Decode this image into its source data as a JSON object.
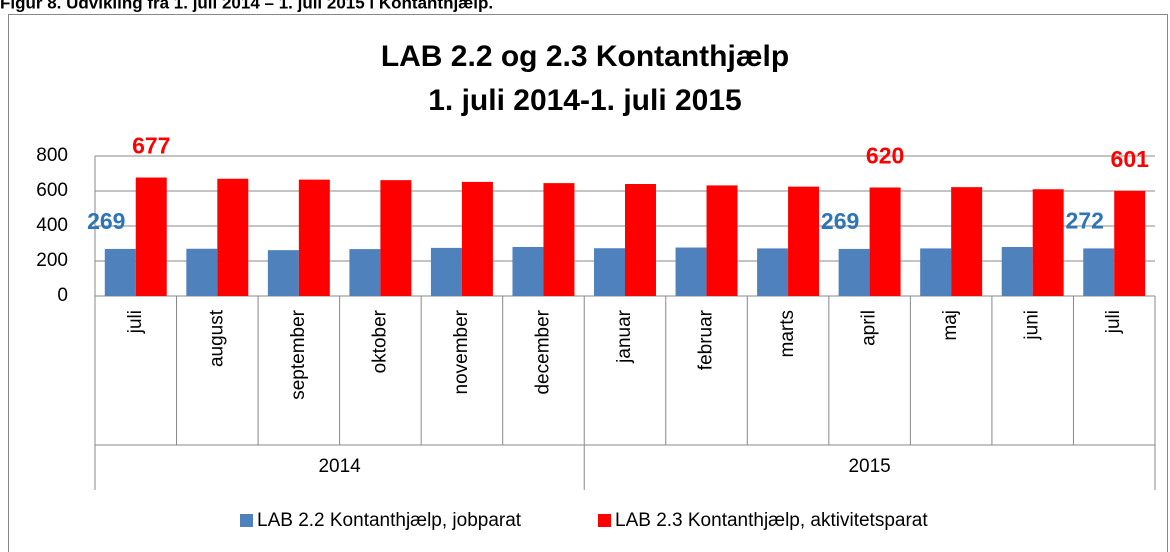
{
  "caption": "Figur 8. Udvikling fra 1. juli 2014 – 1. juli 2015 i Kontanthjælp.",
  "chart_data": {
    "type": "bar",
    "title": [
      "LAB 2.2 og 2.3 Kontanthjælp",
      "1. juli  2014-1. juli 2015"
    ],
    "groups": [
      {
        "name": "2014",
        "categories": [
          "juli",
          "august",
          "september",
          "oktober",
          "november",
          "december"
        ]
      },
      {
        "name": "2015",
        "categories": [
          "januar",
          "februar",
          "marts",
          "april",
          "maj",
          "juni",
          "juli"
        ]
      }
    ],
    "series": [
      {
        "name": "LAB 2.2 Kontanthjælp, jobparat",
        "color": "#4f81bd",
        "label_color": "#2e75b6",
        "values": [
          269,
          270,
          262,
          268,
          275,
          280,
          273,
          277,
          272,
          269,
          272,
          280,
          272
        ],
        "value_labels": [
          "269",
          null,
          null,
          null,
          null,
          null,
          null,
          null,
          null,
          "269",
          null,
          null,
          "272"
        ]
      },
      {
        "name": "LAB 2.3 Kontanthjælp, aktivitetsparat",
        "color": "#ff0000",
        "label_color": "#ff0000",
        "values": [
          677,
          670,
          665,
          662,
          652,
          645,
          640,
          632,
          625,
          620,
          622,
          610,
          601
        ],
        "value_labels": [
          "677",
          null,
          null,
          null,
          null,
          null,
          null,
          null,
          null,
          "620",
          null,
          null,
          "601"
        ]
      }
    ],
    "ylim": [
      0,
      800
    ],
    "yticks": [
      0,
      200,
      400,
      600,
      800
    ],
    "grid": true,
    "legend": "bottom"
  }
}
